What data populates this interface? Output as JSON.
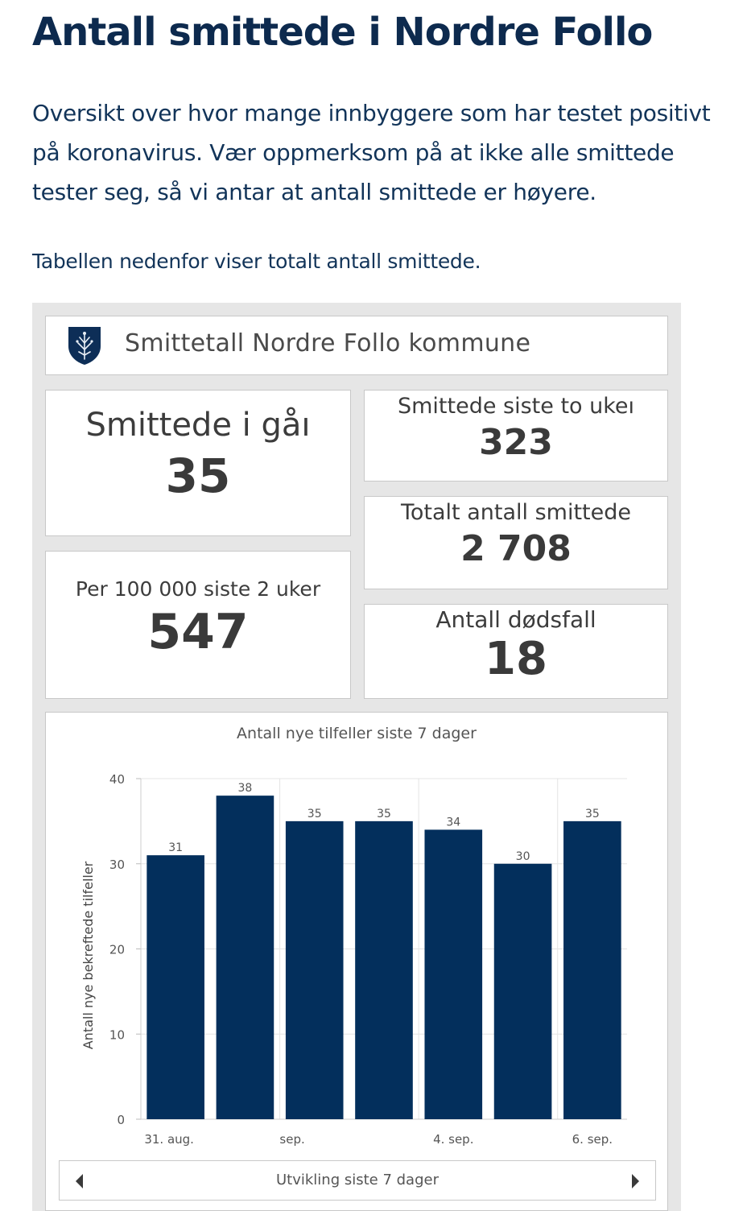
{
  "page": {
    "title": "Antall smittede i Nordre Follo",
    "intro": "Oversikt over hvor mange innbyggere som har testet positivt på koronavirus. Vær oppmerksom på at ikke alle smittede tester seg, så vi antar at antall smittede er høyere.",
    "lead": "Tabellen nedenfor viser totalt antall smittede."
  },
  "dashboard": {
    "header_title": "Smittetall Nordre Follo kommune",
    "logo_icon": "shield-icon",
    "stats": {
      "yesterday": {
        "label": "Smittede i gåı",
        "value": "35"
      },
      "two_weeks": {
        "label": "Smittede siste to ukeı",
        "value": "323"
      },
      "total": {
        "label": "Totalt antall smittede",
        "value": "2 708"
      },
      "per100k": {
        "label": "Per 100 000 siste 2 uker",
        "value": "547"
      },
      "deaths": {
        "label": "Antall dødsfall",
        "value": "18"
      }
    },
    "nav": {
      "label": "Utvikling siste 7 dager",
      "prev_icon": "chevron-left-icon",
      "next_icon": "chevron-right-icon"
    }
  },
  "chart_data": {
    "type": "bar",
    "title": "Antall nye tilfeller siste 7 dager",
    "ylabel": "Antall nye bekreftede tilfeller",
    "xlabel": "",
    "values": [
      31,
      38,
      35,
      35,
      34,
      30,
      35
    ],
    "x_tick_labels": [
      "31. aug.",
      "sep.",
      "4. sep.",
      "6. sep."
    ],
    "y_ticks": [
      "0",
      "10",
      "20",
      "30",
      "40"
    ],
    "ylim": [
      0,
      40
    ],
    "bar_color": "#032f5c",
    "grid": true
  }
}
